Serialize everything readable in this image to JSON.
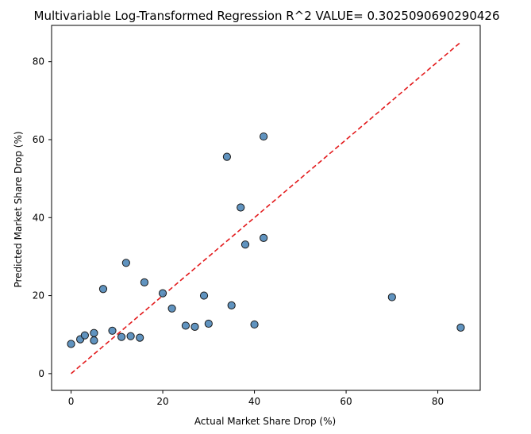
{
  "chart_data": {
    "type": "scatter",
    "title": "Multivariable Log-Transformed Regression R^2 VALUE= 0.3025090690290426",
    "xlabel": "Actual Market Share Drop (%)",
    "ylabel": "Predicted Market Share Drop (%)",
    "xlim": [
      -4.25,
      89.25
    ],
    "ylim": [
      -4.3,
      89.3
    ],
    "xticks": [
      0,
      20,
      40,
      60,
      80
    ],
    "yticks": [
      0,
      20,
      40,
      60,
      80
    ],
    "grid": false,
    "reference_line": {
      "from": [
        0,
        0
      ],
      "to": [
        85,
        85
      ],
      "color": "#e31a1c",
      "style": "dashed"
    },
    "point_color": "#4f87b8",
    "points": [
      {
        "x": 0,
        "y": 7.6
      },
      {
        "x": 2,
        "y": 8.8
      },
      {
        "x": 3,
        "y": 9.8
      },
      {
        "x": 5,
        "y": 10.4
      },
      {
        "x": 5,
        "y": 8.5
      },
      {
        "x": 7,
        "y": 21.7
      },
      {
        "x": 9,
        "y": 11.0
      },
      {
        "x": 11,
        "y": 9.4
      },
      {
        "x": 12,
        "y": 28.4
      },
      {
        "x": 13,
        "y": 9.6
      },
      {
        "x": 15,
        "y": 9.2
      },
      {
        "x": 16,
        "y": 23.4
      },
      {
        "x": 20,
        "y": 20.6
      },
      {
        "x": 22,
        "y": 16.7
      },
      {
        "x": 25,
        "y": 12.3
      },
      {
        "x": 27,
        "y": 12.0
      },
      {
        "x": 29,
        "y": 20.0
      },
      {
        "x": 30,
        "y": 12.8
      },
      {
        "x": 34,
        "y": 55.6
      },
      {
        "x": 35,
        "y": 17.5
      },
      {
        "x": 37,
        "y": 42.6
      },
      {
        "x": 38,
        "y": 33.1
      },
      {
        "x": 40,
        "y": 12.6
      },
      {
        "x": 42,
        "y": 60.8
      },
      {
        "x": 42,
        "y": 34.8
      },
      {
        "x": 70,
        "y": 19.6
      },
      {
        "x": 85,
        "y": 11.8
      }
    ]
  }
}
